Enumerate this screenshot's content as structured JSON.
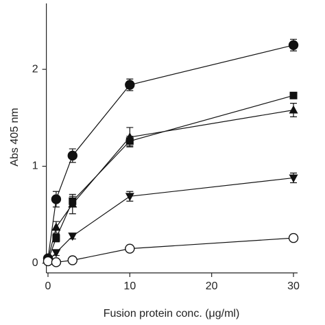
{
  "chart_data": {
    "type": "line",
    "xlabel": "Fusion protein conc. (μg/ml)",
    "ylabel": "Abs 405 nm",
    "x": [
      0,
      1,
      3,
      10,
      30
    ],
    "xlim": [
      -0.2,
      30.5
    ],
    "xticks": [
      0,
      10,
      20,
      30
    ],
    "ylim": [
      -0.1,
      2.68
    ],
    "yticks": [
      0,
      1,
      2
    ],
    "series": [
      {
        "marker": "circle",
        "color": "#111111",
        "values": [
          0.05,
          0.66,
          1.11,
          1.84,
          2.25
        ],
        "errors": [
          0.03,
          0.08,
          0.07,
          0.06,
          0.06
        ]
      },
      {
        "marker": "square",
        "color": "#111111",
        "values": [
          0.03,
          0.26,
          0.64,
          1.26,
          1.73
        ],
        "errors": [
          0.02,
          0.04,
          0.05,
          0.05,
          0.03
        ]
      },
      {
        "marker": "triangle-up",
        "color": "#111111",
        "values": [
          0.04,
          0.37,
          0.61,
          1.3,
          1.58
        ],
        "errors": [
          0.02,
          0.06,
          0.1,
          0.1,
          0.07
        ]
      },
      {
        "marker": "triangle-down",
        "color": "#111111",
        "values": [
          0.02,
          0.11,
          0.28,
          0.69,
          0.88
        ],
        "errors": [
          0.02,
          0.03,
          0.03,
          0.05,
          0.05
        ]
      },
      {
        "marker": "circle-open",
        "color": "#111111",
        "values": [
          0.02,
          0.01,
          0.03,
          0.15,
          0.26
        ],
        "errors": [
          0.01,
          0.02,
          0.02,
          0.03,
          0.03
        ]
      }
    ]
  }
}
